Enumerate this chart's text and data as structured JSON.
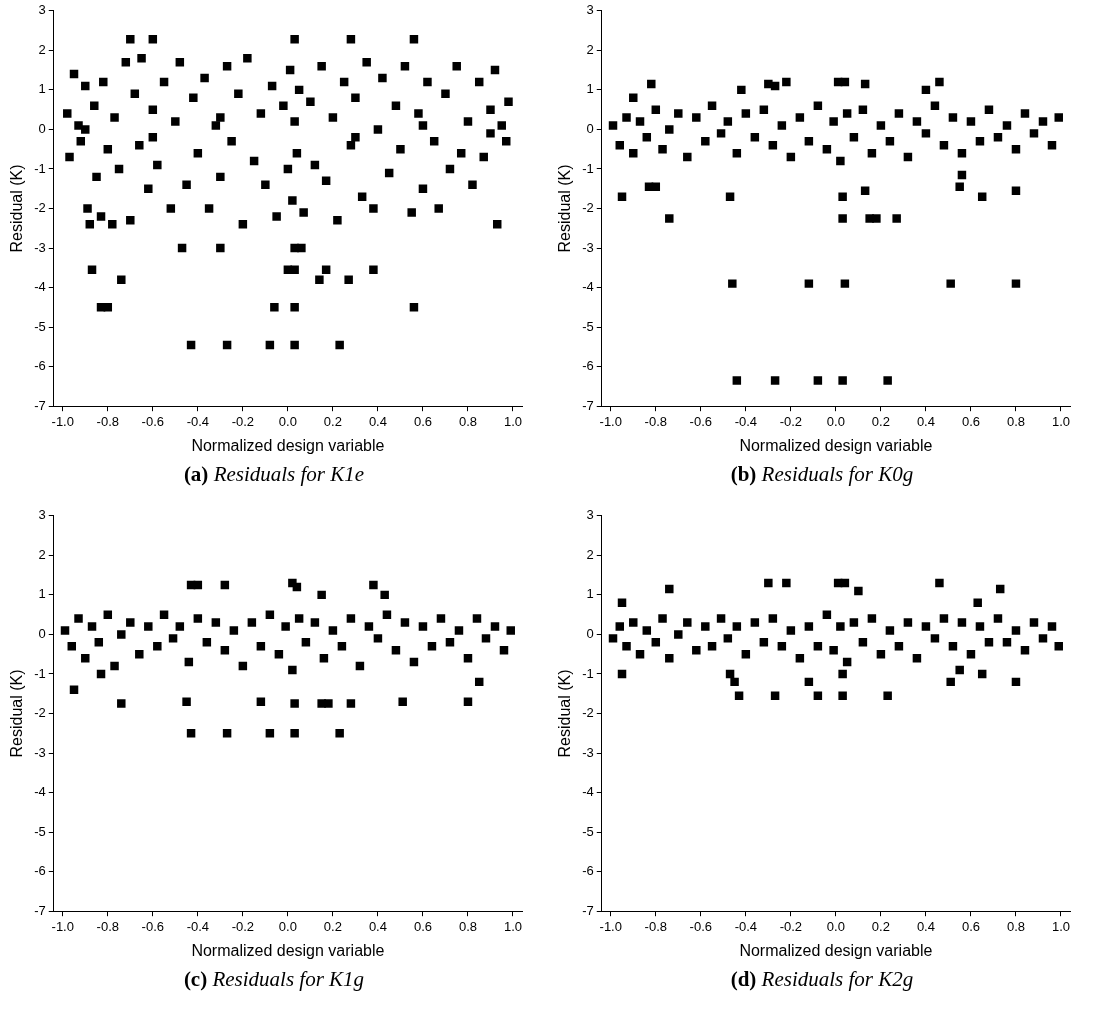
{
  "chart_data": [
    {
      "type": "scatter",
      "color": "#000000",
      "marker": "square",
      "grid": false,
      "legend": false,
      "xlabel": "Normalized design variable",
      "ylabel": "Residual (K)",
      "xlim": [
        -1.04,
        1.04
      ],
      "ylim": [
        -7,
        3
      ],
      "xticks": [
        {
          "value": -1,
          "label": "-1.0"
        },
        {
          "value": -0.8,
          "label": "-0.8"
        },
        {
          "value": -0.6,
          "label": "-0.6"
        },
        {
          "value": -0.4,
          "label": "-0.4"
        },
        {
          "value": -0.2,
          "label": "-0.2"
        },
        {
          "value": 0,
          "label": "0.0"
        },
        {
          "value": 0.2,
          "label": "0.2"
        },
        {
          "value": 0.4,
          "label": "0.4"
        },
        {
          "value": 0.6,
          "label": "0.6"
        },
        {
          "value": 0.8,
          "label": "0.8"
        },
        {
          "value": 1,
          "label": "1.0"
        }
      ],
      "yticks": [
        -7,
        -6,
        -5,
        -4,
        -3,
        -2,
        -1,
        0,
        1,
        2,
        3
      ],
      "annotations": [
        "(a) Residuals for K1e"
      ],
      "x": [
        -0.43,
        -0.27,
        -0.08,
        0.03,
        0.23,
        -0.83,
        -0.8,
        -0.06,
        0.03,
        0.56,
        -0.87,
        -0.74,
        0.0,
        0.03,
        0.14,
        0.17,
        0.27,
        0.38,
        -0.47,
        -0.3,
        0.03,
        0.06,
        -0.7,
        -0.6,
        0.03,
        0.28,
        0.56,
        -0.98,
        -0.97,
        -0.95,
        -0.93,
        -0.92,
        -0.9,
        -0.89,
        -0.88,
        -0.86,
        -0.85,
        -0.83,
        -0.82,
        -0.8,
        -0.78,
        -0.77,
        -0.75,
        -0.72,
        -0.7,
        -0.68,
        -0.66,
        -0.65,
        -0.62,
        -0.6,
        -0.58,
        -0.55,
        -0.52,
        -0.5,
        -0.48,
        -0.45,
        -0.42,
        -0.4,
        -0.37,
        -0.35,
        -0.32,
        -0.3,
        -0.27,
        -0.25,
        -0.22,
        -0.2,
        -0.18,
        -0.15,
        -0.12,
        -0.1,
        -0.07,
        -0.05,
        -0.02,
        0.0,
        0.01,
        0.02,
        0.03,
        0.04,
        0.05,
        0.07,
        0.1,
        0.12,
        0.15,
        0.17,
        0.2,
        0.22,
        0.25,
        0.28,
        0.3,
        0.33,
        0.35,
        0.38,
        0.4,
        0.42,
        0.45,
        0.48,
        0.5,
        0.52,
        0.55,
        0.58,
        0.6,
        0.62,
        0.65,
        0.67,
        0.7,
        0.72,
        0.75,
        0.77,
        0.8,
        0.82,
        0.85,
        0.87,
        0.9,
        0.92,
        0.93,
        0.95,
        0.97,
        0.98,
        -0.9,
        -0.6,
        -0.3,
        0.3,
        0.6,
        0.9
      ],
      "values": [
        -5.45,
        -5.45,
        -5.45,
        -5.45,
        -5.45,
        -4.5,
        -4.5,
        -4.5,
        -4.5,
        -4.5,
        -3.55,
        -3.8,
        -3.55,
        -3.55,
        -3.8,
        -3.55,
        -3.8,
        -3.55,
        -3.0,
        -3.0,
        -3.0,
        -3.0,
        2.28,
        2.28,
        2.28,
        2.28,
        2.28,
        0.4,
        -0.7,
        1.4,
        0.1,
        -0.3,
        1.1,
        -2.0,
        -2.4,
        0.6,
        -1.2,
        -2.2,
        1.2,
        -0.5,
        -2.4,
        0.3,
        -1.0,
        1.7,
        -2.3,
        0.9,
        -0.4,
        1.8,
        -1.5,
        0.5,
        -0.9,
        1.2,
        -2.0,
        0.2,
        1.7,
        -1.4,
        0.8,
        -0.6,
        1.3,
        -2.0,
        0.1,
        -1.2,
        1.6,
        -0.3,
        0.9,
        -2.4,
        1.8,
        -0.8,
        0.4,
        -1.4,
        1.1,
        -2.2,
        0.6,
        -1.0,
        1.5,
        -1.8,
        0.2,
        -0.6,
        1.0,
        -2.1,
        0.7,
        -0.9,
        1.6,
        -1.3,
        0.3,
        -2.3,
        1.2,
        -0.4,
        0.8,
        -1.7,
        1.7,
        -2.0,
        0.0,
        1.3,
        -1.1,
        0.6,
        -0.5,
        1.6,
        -2.1,
        0.4,
        -1.5,
        1.2,
        -0.3,
        -2.0,
        0.9,
        -1.0,
        1.6,
        -0.6,
        0.2,
        -1.4,
        1.2,
        -0.7,
        0.5,
        1.5,
        -2.4,
        0.1,
        -0.3,
        0.7,
        0.0,
        -0.2,
        0.3,
        -0.2,
        0.1,
        -0.1
      ]
    },
    {
      "type": "scatter",
      "color": "#000000",
      "marker": "square",
      "grid": false,
      "legend": false,
      "xlabel": "Normalized design variable",
      "ylabel": "Residual (K)",
      "xlim": [
        -1.04,
        1.04
      ],
      "ylim": [
        -7,
        3
      ],
      "xticks": [
        {
          "value": -1,
          "label": "-1.0"
        },
        {
          "value": -0.8,
          "label": "-0.8"
        },
        {
          "value": -0.6,
          "label": "-0.6"
        },
        {
          "value": -0.4,
          "label": "-0.4"
        },
        {
          "value": -0.2,
          "label": "-0.2"
        },
        {
          "value": 0,
          "label": "0.0"
        },
        {
          "value": 0.2,
          "label": "0.2"
        },
        {
          "value": 0.4,
          "label": "0.4"
        },
        {
          "value": 0.6,
          "label": "0.6"
        },
        {
          "value": 0.8,
          "label": "0.8"
        },
        {
          "value": 1,
          "label": "1.0"
        }
      ],
      "yticks": [
        -7,
        -6,
        -5,
        -4,
        -3,
        -2,
        -1,
        0,
        1,
        2,
        3
      ],
      "annotations": [
        "(b) Residuals for K0g"
      ],
      "x": [
        -0.44,
        -0.27,
        -0.08,
        0.03,
        0.23,
        -0.46,
        -0.12,
        0.04,
        0.51,
        0.8,
        -0.74,
        0.03,
        0.15,
        0.18,
        0.27,
        -0.95,
        -0.83,
        -0.8,
        -0.47,
        0.03,
        0.13,
        0.55,
        0.65,
        0.8,
        0.56,
        -0.82,
        -0.3,
        -0.27,
        -0.22,
        0.01,
        0.04,
        0.13,
        0.46,
        0.4,
        -0.42,
        -0.9,
        -0.99,
        -0.96,
        -0.93,
        -0.9,
        -0.87,
        -0.84,
        -0.8,
        -0.77,
        -0.74,
        -0.7,
        -0.66,
        -0.62,
        -0.58,
        -0.55,
        -0.51,
        -0.48,
        -0.44,
        -0.4,
        -0.36,
        -0.32,
        -0.28,
        -0.24,
        -0.2,
        -0.16,
        -0.12,
        -0.08,
        -0.04,
        -0.01,
        0.02,
        0.05,
        0.08,
        0.12,
        0.16,
        0.2,
        0.24,
        0.28,
        0.32,
        0.36,
        0.4,
        0.44,
        0.48,
        0.52,
        0.56,
        0.6,
        0.64,
        0.68,
        0.72,
        0.76,
        0.8,
        0.84,
        0.88,
        0.92,
        0.96,
        0.99
      ],
      "values": [
        -6.35,
        -6.35,
        -6.35,
        -6.35,
        -6.35,
        -3.9,
        -3.9,
        -3.9,
        -3.9,
        -3.9,
        -2.25,
        -2.25,
        -2.25,
        -2.25,
        -2.25,
        -1.7,
        -1.45,
        -1.45,
        -1.7,
        -1.7,
        -1.55,
        -1.45,
        -1.7,
        -1.55,
        -1.15,
        1.15,
        1.15,
        1.1,
        1.2,
        1.2,
        1.2,
        1.15,
        1.2,
        1.0,
        1.0,
        0.8,
        0.1,
        -0.4,
        0.3,
        -0.6,
        0.2,
        -0.2,
        0.5,
        -0.5,
        0.0,
        0.4,
        -0.7,
        0.3,
        -0.3,
        0.6,
        -0.1,
        0.2,
        -0.6,
        0.4,
        -0.2,
        0.5,
        -0.4,
        0.1,
        -0.7,
        0.3,
        -0.3,
        0.6,
        -0.5,
        0.2,
        -0.8,
        0.4,
        -0.2,
        0.5,
        -0.6,
        0.1,
        -0.3,
        0.4,
        -0.7,
        0.2,
        -0.1,
        0.6,
        -0.4,
        0.3,
        -0.6,
        0.2,
        -0.3,
        0.5,
        -0.2,
        0.1,
        -0.5,
        0.4,
        -0.1,
        0.2,
        -0.4,
        0.3
      ]
    },
    {
      "type": "scatter",
      "color": "#000000",
      "marker": "square",
      "grid": false,
      "legend": false,
      "xlabel": "Normalized design variable",
      "ylabel": "Residual (K)",
      "xlim": [
        -1.04,
        1.04
      ],
      "ylim": [
        -7,
        3
      ],
      "xticks": [
        {
          "value": -1,
          "label": "-1.0"
        },
        {
          "value": -0.8,
          "label": "-0.8"
        },
        {
          "value": -0.6,
          "label": "-0.6"
        },
        {
          "value": -0.4,
          "label": "-0.4"
        },
        {
          "value": -0.2,
          "label": "-0.2"
        },
        {
          "value": 0,
          "label": "0.0"
        },
        {
          "value": 0.2,
          "label": "0.2"
        },
        {
          "value": 0.4,
          "label": "0.4"
        },
        {
          "value": 0.6,
          "label": "0.6"
        },
        {
          "value": 0.8,
          "label": "0.8"
        },
        {
          "value": 1,
          "label": "1.0"
        }
      ],
      "yticks": [
        -7,
        -6,
        -5,
        -4,
        -3,
        -2,
        -1,
        0,
        1,
        2,
        3
      ],
      "annotations": [
        "(c) Residuals for K1g"
      ],
      "x": [
        -0.43,
        -0.27,
        -0.08,
        0.03,
        0.23,
        -0.74,
        -0.45,
        0.03,
        0.15,
        0.18,
        0.28,
        0.51,
        0.8,
        -0.12,
        -0.43,
        -0.4,
        -0.28,
        0.02,
        0.04,
        0.38,
        0.43,
        0.15,
        -0.95,
        -0.83,
        0.85,
        -0.99,
        -0.96,
        -0.93,
        -0.9,
        -0.87,
        -0.84,
        -0.8,
        -0.77,
        -0.74,
        -0.7,
        -0.66,
        -0.62,
        -0.58,
        -0.55,
        -0.51,
        -0.48,
        -0.44,
        -0.4,
        -0.36,
        -0.32,
        -0.28,
        -0.24,
        -0.2,
        -0.16,
        -0.12,
        -0.08,
        -0.04,
        -0.01,
        0.02,
        0.05,
        0.08,
        0.12,
        0.16,
        0.2,
        0.24,
        0.28,
        0.32,
        0.36,
        0.4,
        0.44,
        0.48,
        0.52,
        0.56,
        0.6,
        0.64,
        0.68,
        0.72,
        0.76,
        0.8,
        0.84,
        0.88,
        0.92,
        0.96,
        0.99
      ],
      "values": [
        -2.5,
        -2.5,
        -2.5,
        -2.5,
        -2.5,
        -1.75,
        -1.7,
        -1.75,
        -1.75,
        -1.75,
        -1.75,
        -1.7,
        -1.7,
        -1.7,
        1.25,
        1.25,
        1.25,
        1.3,
        1.2,
        1.25,
        1.0,
        1.0,
        -1.4,
        -1.0,
        -1.2,
        0.1,
        -0.3,
        0.4,
        -0.6,
        0.2,
        -0.2,
        0.5,
        -0.8,
        0.0,
        0.3,
        -0.5,
        0.2,
        -0.3,
        0.5,
        -0.1,
        0.2,
        -0.7,
        0.4,
        -0.2,
        0.3,
        -0.4,
        0.1,
        -0.8,
        0.3,
        -0.3,
        0.5,
        -0.5,
        0.2,
        -0.9,
        0.4,
        -0.2,
        0.3,
        -0.6,
        0.1,
        -0.3,
        0.4,
        -0.8,
        0.2,
        -0.1,
        0.5,
        -0.4,
        0.3,
        -0.7,
        0.2,
        -0.3,
        0.4,
        -0.2,
        0.1,
        -0.6,
        0.4,
        -0.1,
        0.2,
        -0.4,
        0.1
      ]
    },
    {
      "type": "scatter",
      "color": "#000000",
      "marker": "square",
      "grid": false,
      "legend": false,
      "xlabel": "Normalized design variable",
      "ylabel": "Residual (K)",
      "xlim": [
        -1.04,
        1.04
      ],
      "ylim": [
        -7,
        3
      ],
      "xticks": [
        {
          "value": -1,
          "label": "-1.0"
        },
        {
          "value": -0.8,
          "label": "-0.8"
        },
        {
          "value": -0.6,
          "label": "-0.6"
        },
        {
          "value": -0.4,
          "label": "-0.4"
        },
        {
          "value": -0.2,
          "label": "-0.2"
        },
        {
          "value": 0,
          "label": "0.0"
        },
        {
          "value": 0.2,
          "label": "0.2"
        },
        {
          "value": 0.4,
          "label": "0.4"
        },
        {
          "value": 0.6,
          "label": "0.6"
        },
        {
          "value": 0.8,
          "label": "0.8"
        },
        {
          "value": 1,
          "label": "1.0"
        }
      ],
      "yticks": [
        -7,
        -6,
        -5,
        -4,
        -3,
        -2,
        -1,
        0,
        1,
        2,
        3
      ],
      "annotations": [
        "(d) Residuals for K2g"
      ],
      "x": [
        -0.43,
        -0.27,
        -0.08,
        0.03,
        0.23,
        -0.47,
        -0.45,
        -0.12,
        0.03,
        0.51,
        0.55,
        0.65,
        0.8,
        -0.95,
        -0.3,
        -0.22,
        0.01,
        0.04,
        0.46,
        0.73,
        -0.74,
        -0.95,
        0.1,
        0.63,
        -0.99,
        -0.96,
        -0.93,
        -0.9,
        -0.87,
        -0.84,
        -0.8,
        -0.77,
        -0.74,
        -0.7,
        -0.66,
        -0.62,
        -0.58,
        -0.55,
        -0.51,
        -0.48,
        -0.44,
        -0.4,
        -0.36,
        -0.32,
        -0.28,
        -0.24,
        -0.2,
        -0.16,
        -0.12,
        -0.08,
        -0.04,
        -0.01,
        0.02,
        0.05,
        0.08,
        0.12,
        0.16,
        0.2,
        0.24,
        0.28,
        0.32,
        0.36,
        0.4,
        0.44,
        0.48,
        0.52,
        0.56,
        0.6,
        0.64,
        0.68,
        0.72,
        0.76,
        0.8,
        0.84,
        0.88,
        0.92,
        0.96,
        0.99
      ],
      "values": [
        -1.55,
        -1.55,
        -1.55,
        -1.55,
        -1.55,
        -1.0,
        -1.2,
        -1.2,
        -1.0,
        -1.2,
        -0.9,
        -1.0,
        -1.2,
        -1.0,
        1.3,
        1.3,
        1.3,
        1.3,
        1.3,
        1.15,
        1.15,
        0.8,
        1.1,
        0.8,
        -0.1,
        0.2,
        -0.3,
        0.3,
        -0.5,
        0.1,
        -0.2,
        0.4,
        -0.6,
        0.0,
        0.3,
        -0.4,
        0.2,
        -0.3,
        0.4,
        -0.1,
        0.2,
        -0.5,
        0.3,
        -0.2,
        0.4,
        -0.3,
        0.1,
        -0.6,
        0.2,
        -0.3,
        0.5,
        -0.4,
        0.2,
        -0.7,
        0.3,
        -0.2,
        0.4,
        -0.5,
        0.1,
        -0.3,
        0.3,
        -0.6,
        0.2,
        -0.1,
        0.4,
        -0.3,
        0.3,
        -0.5,
        0.2,
        -0.2,
        0.4,
        -0.2,
        0.1,
        -0.4,
        0.3,
        -0.1,
        0.2,
        -0.3
      ]
    }
  ]
}
